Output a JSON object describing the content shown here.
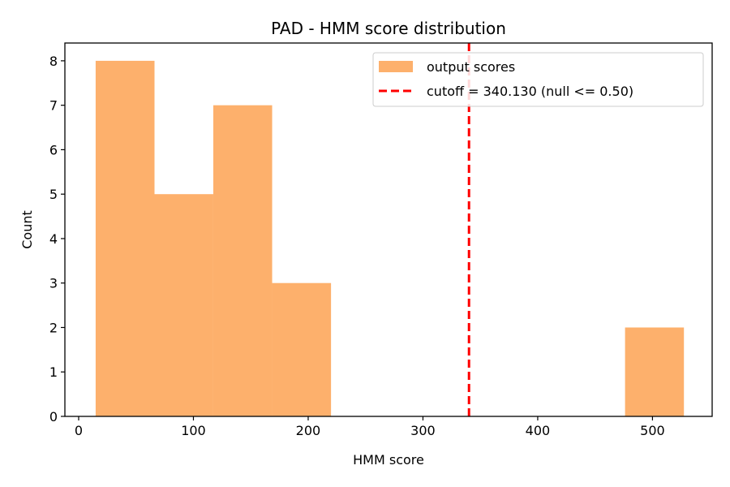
{
  "chart_data": {
    "type": "bar",
    "title": "PAD - HMM score distribution",
    "xlabel": "HMM score",
    "ylabel": "Count",
    "xlim": [
      -12,
      552
    ],
    "ylim": [
      0,
      8.4
    ],
    "xticks": [
      0,
      100,
      200,
      300,
      400,
      500
    ],
    "yticks": [
      0,
      1,
      2,
      3,
      4,
      5,
      6,
      7,
      8
    ],
    "bins": [
      {
        "x0": 14.8,
        "x1": 66.1,
        "count": 8
      },
      {
        "x0": 66.1,
        "x1": 117.3,
        "count": 5
      },
      {
        "x0": 117.3,
        "x1": 168.6,
        "count": 7
      },
      {
        "x0": 168.6,
        "x1": 219.9,
        "count": 3
      },
      {
        "x0": 219.9,
        "x1": 271.1,
        "count": 0
      },
      {
        "x0": 271.1,
        "x1": 322.4,
        "count": 0
      },
      {
        "x0": 322.4,
        "x1": 373.6,
        "count": 0
      },
      {
        "x0": 373.6,
        "x1": 424.9,
        "count": 0
      },
      {
        "x0": 424.9,
        "x1": 476.1,
        "count": 0
      },
      {
        "x0": 476.1,
        "x1": 527.4,
        "count": 2
      }
    ],
    "cutoff": 340.13,
    "legend": {
      "position": "top-right",
      "entries": [
        {
          "label": "output scores",
          "kind": "patch",
          "color": "#fdb06c"
        },
        {
          "label": "cutoff = 340.130 (null <= 0.50)",
          "kind": "dashed-line",
          "color": "#ff0000"
        }
      ]
    },
    "grid": false,
    "colors": {
      "bars": "#fdb06c",
      "cutoff": "#ff0000"
    }
  }
}
